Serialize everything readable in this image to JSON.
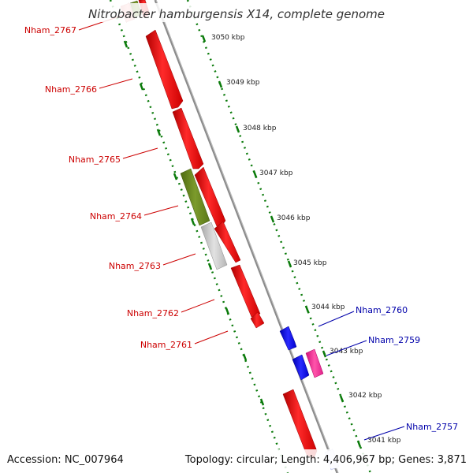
{
  "title": "Nitrobacter hamburgensis X14, complete genome",
  "footer": {
    "accession": "Accession: NC_007964",
    "topology": "Topology: circular; Length: 4,406,967 bp; Genes: 3,871"
  },
  "ticks": [
    "3050 kbp",
    "3049 kbp",
    "3048 kbp",
    "3047 kbp",
    "3046 kbp",
    "3045 kbp",
    "3044 kbp",
    "3043 kbp",
    "3042 kbp",
    "3041 kbp"
  ],
  "genes_left": [
    "Nham_2767",
    "Nham_2766",
    "Nham_2765",
    "Nham_2764",
    "Nham_2763",
    "Nham_2762",
    "Nham_2761"
  ],
  "genes_right": [
    "Nham_2760",
    "Nham_2759",
    "Nham_2757"
  ],
  "colors": {
    "left_label": "#cc0000",
    "right_label": "#0000aa",
    "backbone": "#888888",
    "tick_dots": "#006600",
    "red_gene": "#ff0000",
    "olive_gene": "#6b8e23",
    "grey_gene": "#c8c8c8",
    "blue_gene": "#0000ff",
    "pink_gene": "#ff3399"
  }
}
